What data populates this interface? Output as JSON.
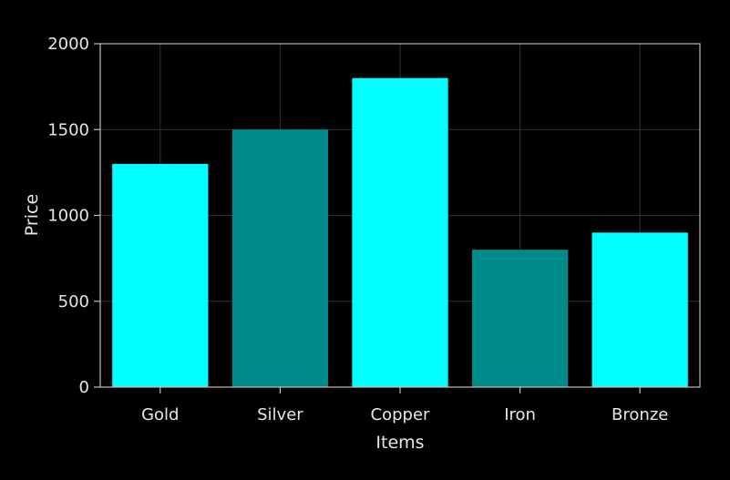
{
  "chart_data": {
    "type": "bar",
    "categories": [
      "Gold",
      "Silver",
      "Copper",
      "Iron",
      "Bronze"
    ],
    "values": [
      1300,
      1500,
      1800,
      800,
      900
    ],
    "bar_colors": [
      "#00FFFF",
      "#008B8B",
      "#00FFFF",
      "#008B8B",
      "#00FFFF"
    ],
    "title": "",
    "xlabel": "Items",
    "ylabel": "Price",
    "ylim": [
      0,
      2000
    ],
    "yticks": [
      0,
      500,
      1000,
      1500,
      2000
    ],
    "grid": true,
    "legend": "none"
  },
  "colors": {
    "background": "#000000",
    "axis": "#BFBFBF",
    "grid": "#333333",
    "text": "#E6E6E6"
  }
}
